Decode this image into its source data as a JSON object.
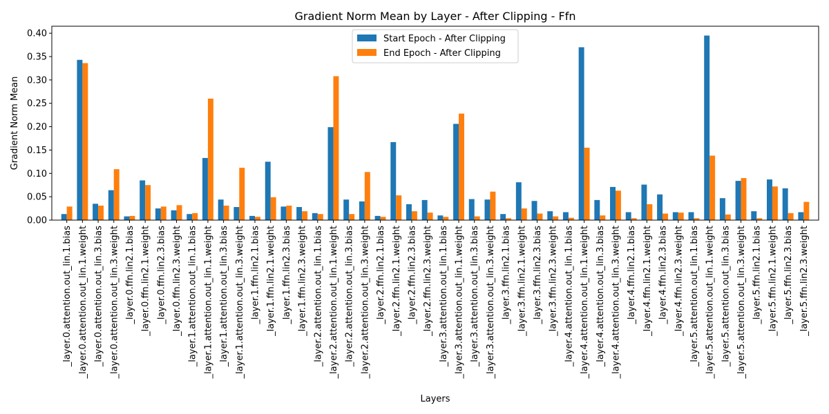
{
  "chart_data": {
    "type": "bar",
    "title": "Gradient Norm Mean by Layer - After Clipping - Ffn",
    "xlabel": "Layers",
    "ylabel": "Gradient Norm Mean",
    "ylim": [
      0,
      0.415
    ],
    "yticks": [
      "0.00",
      "0.05",
      "0.10",
      "0.15",
      "0.20",
      "0.25",
      "0.30",
      "0.35",
      "0.40"
    ],
    "legend_position": "top-center",
    "categories": [
      "_layer.0.attention.out_lin.1.bias",
      "_layer.0.attention.out_lin.1.weight",
      "_layer.0.attention.out_lin.3.bias",
      "_layer.0.attention.out_lin.3.weight",
      "_layer.0.ffn.lin2.1.bias",
      "_layer.0.ffn.lin2.1.weight",
      "_layer.0.ffn.lin2.3.bias",
      "_layer.0.ffn.lin2.3.weight",
      "_layer.1.attention.out_lin.1.bias",
      "_layer.1.attention.out_lin.1.weight",
      "_layer.1.attention.out_lin.3.bias",
      "_layer.1.attention.out_lin.3.weight",
      "_layer.1.ffn.lin2.1.bias",
      "_layer.1.ffn.lin2.1.weight",
      "_layer.1.ffn.lin2.3.bias",
      "_layer.1.ffn.lin2.3.weight",
      "_layer.2.attention.out_lin.1.bias",
      "_layer.2.attention.out_lin.1.weight",
      "_layer.2.attention.out_lin.3.bias",
      "_layer.2.attention.out_lin.3.weight",
      "_layer.2.ffn.lin2.1.bias",
      "_layer.2.ffn.lin2.1.weight",
      "_layer.2.ffn.lin2.3.bias",
      "_layer.2.ffn.lin2.3.weight",
      "_layer.3.attention.out_lin.1.bias",
      "_layer.3.attention.out_lin.1.weight",
      "_layer.3.attention.out_lin.3.bias",
      "_layer.3.attention.out_lin.3.weight",
      "_layer.3.ffn.lin2.1.bias",
      "_layer.3.ffn.lin2.1.weight",
      "_layer.3.ffn.lin2.3.bias",
      "_layer.3.ffn.lin2.3.weight",
      "_layer.4.attention.out_lin.1.bias",
      "_layer.4.attention.out_lin.1.weight",
      "_layer.4.attention.out_lin.3.bias",
      "_layer.4.attention.out_lin.3.weight",
      "_layer.4.ffn.lin2.1.bias",
      "_layer.4.ffn.lin2.1.weight",
      "_layer.4.ffn.lin2.3.bias",
      "_layer.4.ffn.lin2.3.weight",
      "_layer.5.attention.out_lin.1.bias",
      "_layer.5.attention.out_lin.1.weight",
      "_layer.5.attention.out_lin.3.bias",
      "_layer.5.attention.out_lin.3.weight",
      "_layer.5.ffn.lin2.1.bias",
      "_layer.5.ffn.lin2.1.weight",
      "_layer.5.ffn.lin2.3.bias",
      "_layer.5.ffn.lin2.3.weight"
    ],
    "series": [
      {
        "name": "Start Epoch - After Clipping",
        "color": "#1f77b4",
        "values": [
          0.013,
          0.343,
          0.035,
          0.064,
          0.008,
          0.085,
          0.025,
          0.021,
          0.013,
          0.133,
          0.044,
          0.028,
          0.009,
          0.125,
          0.029,
          0.028,
          0.015,
          0.199,
          0.044,
          0.04,
          0.009,
          0.167,
          0.034,
          0.043,
          0.01,
          0.206,
          0.045,
          0.044,
          0.013,
          0.081,
          0.041,
          0.019,
          0.017,
          0.37,
          0.043,
          0.071,
          0.017,
          0.076,
          0.055,
          0.017,
          0.017,
          0.395,
          0.047,
          0.084,
          0.019,
          0.087,
          0.068,
          0.017
        ]
      },
      {
        "name": "End Epoch - After Clipping",
        "color": "#ff7f0e",
        "values": [
          0.029,
          0.336,
          0.031,
          0.109,
          0.009,
          0.075,
          0.029,
          0.032,
          0.015,
          0.26,
          0.031,
          0.112,
          0.007,
          0.049,
          0.031,
          0.019,
          0.013,
          0.308,
          0.013,
          0.103,
          0.007,
          0.053,
          0.019,
          0.016,
          0.007,
          0.228,
          0.008,
          0.061,
          0.004,
          0.025,
          0.014,
          0.008,
          0.005,
          0.155,
          0.01,
          0.063,
          0.004,
          0.034,
          0.014,
          0.016,
          0.004,
          0.138,
          0.012,
          0.09,
          0.004,
          0.072,
          0.015,
          0.039
        ]
      }
    ]
  }
}
